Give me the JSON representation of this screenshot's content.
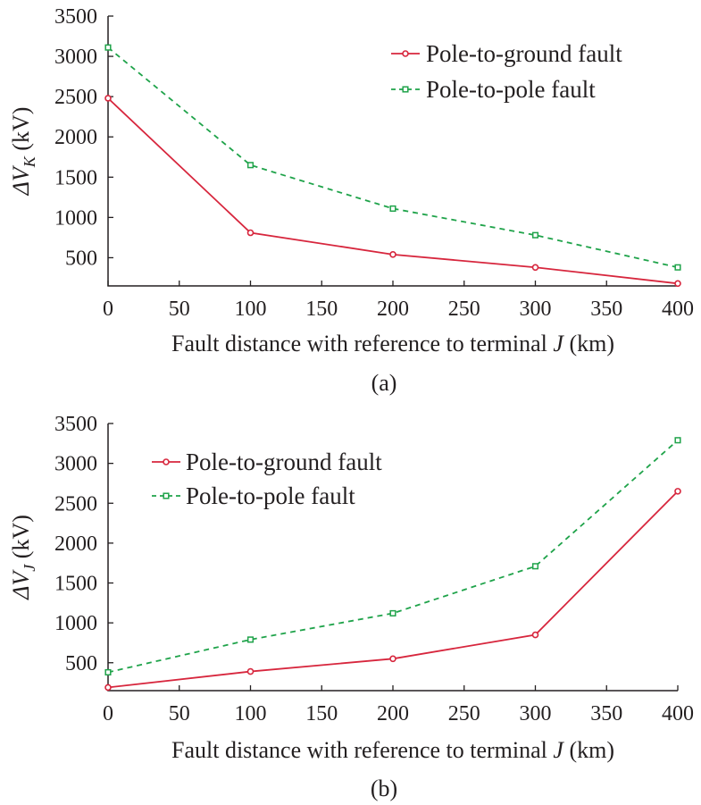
{
  "chart_data": [
    {
      "type": "line",
      "panel_label": "(a)",
      "xlabel_prefix": "Fault distance with reference to terminal ",
      "xlabel_var": "J",
      "xlabel_suffix": " (km)",
      "ylabel_prefix": "ΔV",
      "ylabel_sub": "K",
      "ylabel_suffix": " (kV)",
      "x": [
        0,
        100,
        200,
        300,
        400
      ],
      "xlim": [
        0,
        400
      ],
      "ylim": [
        150,
        3500
      ],
      "xticks": [
        0,
        50,
        100,
        150,
        200,
        250,
        300,
        350,
        400
      ],
      "yticks": [
        500,
        1000,
        1500,
        2000,
        2500,
        3000,
        3500
      ],
      "grid": false,
      "legend_position": "top-right",
      "series": [
        {
          "name": "Pole-to-ground fault",
          "values": [
            2480,
            810,
            540,
            380,
            180
          ],
          "color": "#d7263d",
          "dash": "solid",
          "marker": "circle"
        },
        {
          "name": "Pole-to-pole fault",
          "values": [
            3110,
            1650,
            1110,
            780,
            380
          ],
          "color": "#1fa34a",
          "dash": "dashed",
          "marker": "square"
        }
      ]
    },
    {
      "type": "line",
      "panel_label": "(b)",
      "xlabel_prefix": "Fault distance with reference to terminal ",
      "xlabel_var": "J",
      "xlabel_suffix": " (km)",
      "ylabel_prefix": "ΔV",
      "ylabel_sub": "J",
      "ylabel_suffix": " (kV)",
      "x": [
        0,
        100,
        200,
        300,
        400
      ],
      "xlim": [
        0,
        400
      ],
      "ylim": [
        150,
        3500
      ],
      "xticks": [
        0,
        50,
        100,
        150,
        200,
        250,
        300,
        350,
        400
      ],
      "yticks": [
        500,
        1000,
        1500,
        2000,
        2500,
        3000,
        3500
      ],
      "grid": false,
      "legend_position": "top-left",
      "series": [
        {
          "name": "Pole-to-ground fault",
          "values": [
            190,
            390,
            550,
            850,
            2650
          ],
          "color": "#d7263d",
          "dash": "solid",
          "marker": "circle"
        },
        {
          "name": "Pole-to-pole fault",
          "values": [
            380,
            790,
            1120,
            1710,
            3290
          ],
          "color": "#1fa34a",
          "dash": "dashed",
          "marker": "square"
        }
      ]
    }
  ]
}
